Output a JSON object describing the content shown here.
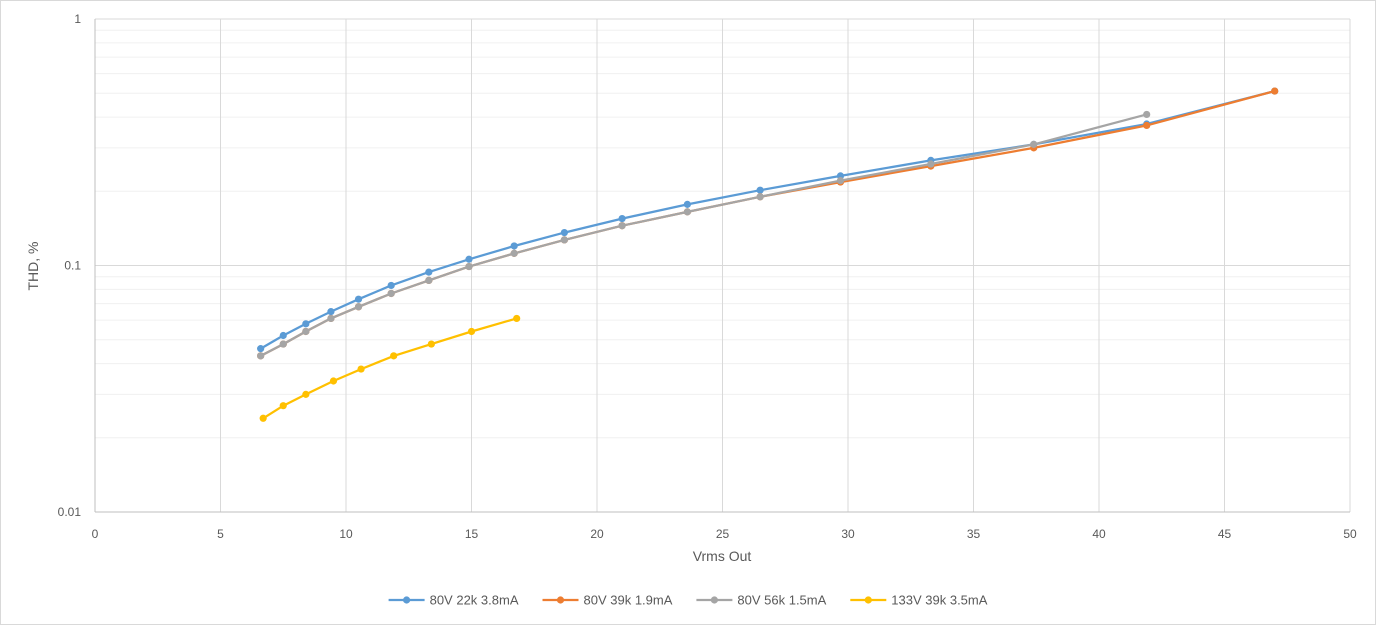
{
  "chart_data": {
    "type": "line",
    "title": "",
    "xlabel": "Vrms Out",
    "ylabel": "THD, %",
    "xlim": [
      0,
      50
    ],
    "ylim": [
      0.01,
      1
    ],
    "yscale": "log",
    "grid": true,
    "legend_position": "bottom",
    "x_ticks": [
      0,
      5,
      10,
      15,
      20,
      25,
      30,
      35,
      40,
      45,
      50
    ],
    "y_ticks": [
      0.01,
      0.1,
      1
    ],
    "series": [
      {
        "name": "80V 22k 3.8mA",
        "color": "#5b9bd5",
        "x": [
          6.6,
          7.5,
          8.4,
          9.4,
          10.5,
          11.8,
          13.3,
          14.9,
          16.7,
          18.7,
          21.0,
          23.6,
          26.5,
          29.7,
          33.3,
          37.4,
          41.9,
          47.0
        ],
        "y": [
          0.046,
          0.052,
          0.058,
          0.065,
          0.073,
          0.083,
          0.094,
          0.106,
          0.12,
          0.136,
          0.155,
          0.177,
          0.202,
          0.231,
          0.267,
          0.31,
          0.375,
          0.51
        ]
      },
      {
        "name": "80V 39k 1.9mA",
        "color": "#ed7d31",
        "x": [
          6.6,
          7.5,
          8.4,
          9.4,
          10.5,
          11.8,
          13.3,
          14.9,
          16.7,
          18.7,
          21.0,
          23.6,
          26.5,
          29.7,
          33.3,
          37.4,
          41.9,
          47.0
        ],
        "y": [
          0.043,
          0.048,
          0.054,
          0.061,
          0.068,
          0.077,
          0.087,
          0.099,
          0.112,
          0.127,
          0.145,
          0.165,
          0.19,
          0.218,
          0.253,
          0.3,
          0.37,
          0.51
        ]
      },
      {
        "name": "80V 56k 1.5mA",
        "color": "#a5a5a5",
        "x": [
          6.6,
          7.5,
          8.4,
          9.4,
          10.5,
          11.8,
          13.3,
          14.9,
          16.7,
          18.7,
          21.0,
          23.6,
          26.5,
          29.7,
          33.3,
          37.4,
          41.9
        ],
        "y": [
          0.043,
          0.048,
          0.054,
          0.061,
          0.068,
          0.077,
          0.087,
          0.099,
          0.112,
          0.127,
          0.145,
          0.165,
          0.19,
          0.221,
          0.258,
          0.31,
          0.41
        ]
      },
      {
        "name": "133V 39k 3.5mA",
        "color": "#ffc000",
        "x": [
          6.7,
          7.5,
          8.4,
          9.5,
          10.6,
          11.9,
          13.4,
          15.0,
          16.8
        ],
        "y": [
          0.024,
          0.027,
          0.03,
          0.034,
          0.038,
          0.043,
          0.048,
          0.054,
          0.061
        ]
      }
    ]
  }
}
